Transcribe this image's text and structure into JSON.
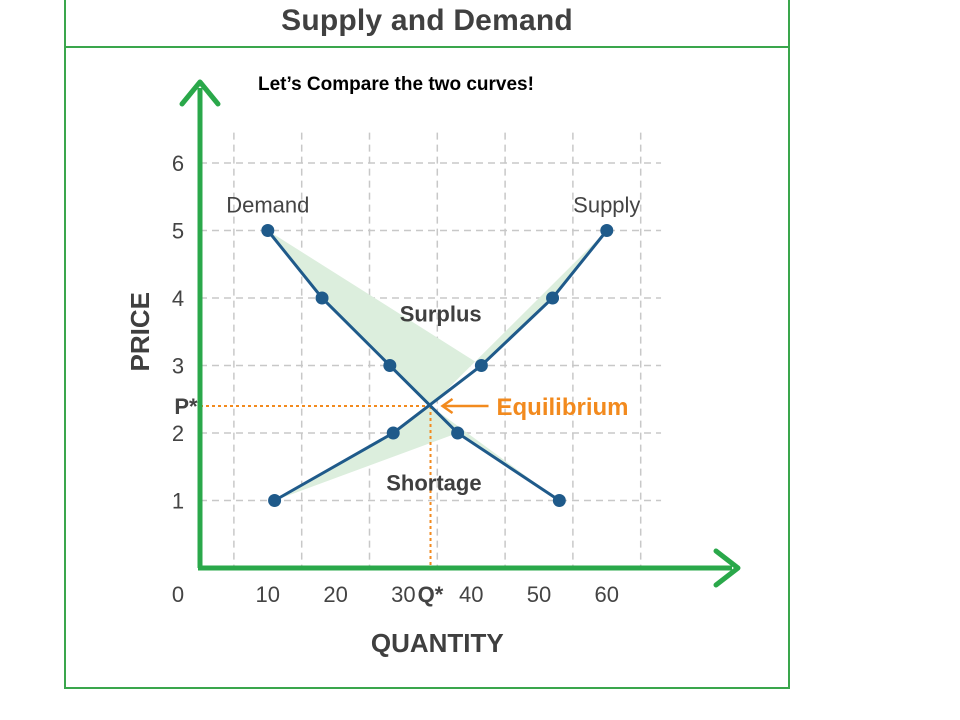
{
  "title": "Supply and Demand",
  "subtitle": "Let’s Compare the two curves!",
  "colors": {
    "axis": "#2aa84a",
    "curve": "#1f5a8a",
    "shade": "#dceedd",
    "grid": "#c8c8c8",
    "equilibrium": "#f28a1e",
    "frame": "#3aa64c"
  },
  "chart_data": {
    "type": "line",
    "title": "Supply and Demand",
    "xlabel": "QUANTITY",
    "ylabel": "PRICE",
    "xlim": [
      0,
      70
    ],
    "ylim": [
      0,
      6.5
    ],
    "x_ticks": [
      "0",
      "10",
      "20",
      "30",
      "40",
      "50",
      "60"
    ],
    "x_tick_values": [
      0,
      10,
      20,
      30,
      40,
      50,
      60
    ],
    "y_ticks": [
      "1",
      "2",
      "3",
      "4",
      "5",
      "6"
    ],
    "y_tick_values": [
      1,
      2,
      3,
      4,
      5,
      6
    ],
    "grid": true,
    "series": [
      {
        "name": "Demand",
        "points": [
          [
            10,
            5
          ],
          [
            18,
            4
          ],
          [
            28,
            3
          ],
          [
            38,
            2
          ],
          [
            53,
            1
          ]
        ]
      },
      {
        "name": "Supply",
        "points": [
          [
            11,
            1
          ],
          [
            28.5,
            2
          ],
          [
            41.5,
            3
          ],
          [
            52,
            4
          ],
          [
            60,
            5
          ]
        ]
      }
    ],
    "regions": [
      {
        "label": "Surplus"
      },
      {
        "label": "Shortage"
      }
    ],
    "equilibrium": {
      "x": 34,
      "y": 2.4,
      "label": "Equilibrium",
      "x_label": "Q*",
      "y_label": "P*"
    }
  }
}
